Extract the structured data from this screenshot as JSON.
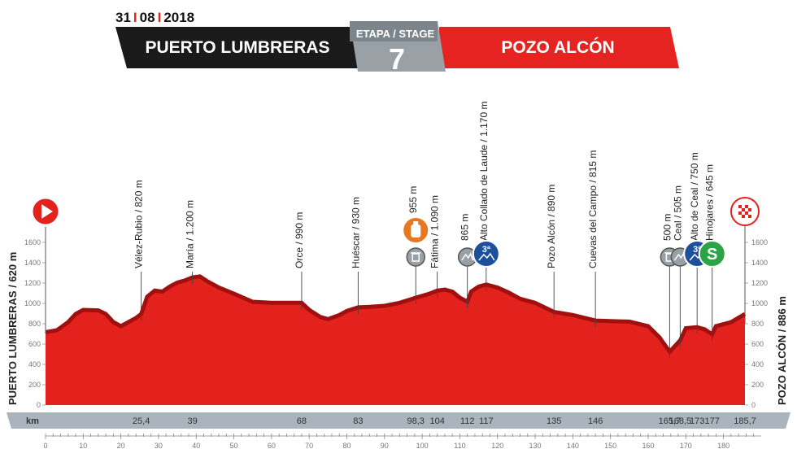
{
  "header": {
    "date_day": "31",
    "date_month": "08",
    "date_year": "2018",
    "start_city": "PUERTO LUMBRERAS",
    "finish_city": "POZO ALCÓN",
    "stage_label": "ETAPA / STAGE",
    "stage_number": "7"
  },
  "colors": {
    "profile_red": "#e3211d",
    "profile_dark_red": "#a1100f",
    "header_black": "#1a1a1a",
    "header_red": "#e52421",
    "stage_gray": "#9aa1a6",
    "climb_blue": "#1c4f9c",
    "sprint_green": "#2aa445",
    "feed_orange": "#e87722",
    "km_bar": "#aab4bd"
  },
  "chart_data": {
    "type": "area",
    "title": "",
    "xlabel": "",
    "ylabel": "",
    "left_axis_label": "PUERTO LUMBRERAS / 620 m",
    "right_axis_label": "POZO ALCÓN / 886 m",
    "km_label": "km",
    "xlim": [
      0,
      190
    ],
    "ylim": [
      0,
      1800
    ],
    "y_ticks": [
      0,
      200,
      400,
      600,
      800,
      1000,
      1200,
      1400,
      1600
    ],
    "x_ticks": [
      0,
      10,
      20,
      30,
      40,
      50,
      60,
      70,
      80,
      90,
      100,
      110,
      120,
      130,
      140,
      150,
      160,
      170,
      180
    ],
    "grid": false,
    "profile": [
      [
        0,
        700
      ],
      [
        3,
        720
      ],
      [
        6,
        800
      ],
      [
        8,
        880
      ],
      [
        10,
        920
      ],
      [
        14,
        915
      ],
      [
        16,
        880
      ],
      [
        18,
        800
      ],
      [
        20,
        760
      ],
      [
        22,
        800
      ],
      [
        24,
        840
      ],
      [
        25.4,
        880
      ],
      [
        27,
        1050
      ],
      [
        29,
        1110
      ],
      [
        31,
        1100
      ],
      [
        33,
        1150
      ],
      [
        35,
        1190
      ],
      [
        37,
        1210
      ],
      [
        39,
        1240
      ],
      [
        41,
        1250
      ],
      [
        43,
        1200
      ],
      [
        46,
        1140
      ],
      [
        50,
        1080
      ],
      [
        55,
        1000
      ],
      [
        60,
        990
      ],
      [
        64,
        990
      ],
      [
        68,
        990
      ],
      [
        70,
        920
      ],
      [
        73,
        850
      ],
      [
        75,
        830
      ],
      [
        78,
        870
      ],
      [
        80,
        910
      ],
      [
        83,
        945
      ],
      [
        86,
        950
      ],
      [
        90,
        960
      ],
      [
        94,
        990
      ],
      [
        98.3,
        1040
      ],
      [
        102,
        1080
      ],
      [
        104,
        1110
      ],
      [
        106,
        1120
      ],
      [
        108,
        1100
      ],
      [
        110,
        1040
      ],
      [
        112,
        1000
      ],
      [
        113,
        1100
      ],
      [
        115,
        1150
      ],
      [
        117,
        1170
      ],
      [
        120,
        1140
      ],
      [
        123,
        1090
      ],
      [
        126,
        1030
      ],
      [
        130,
        990
      ],
      [
        135,
        900
      ],
      [
        140,
        870
      ],
      [
        146,
        815
      ],
      [
        150,
        810
      ],
      [
        155,
        805
      ],
      [
        160,
        760
      ],
      [
        163,
        650
      ],
      [
        165.7,
        510
      ],
      [
        167,
        560
      ],
      [
        168.5,
        620
      ],
      [
        170,
        740
      ],
      [
        173,
        750
      ],
      [
        175,
        730
      ],
      [
        177,
        680
      ],
      [
        178,
        760
      ],
      [
        182,
        800
      ],
      [
        185.7,
        880
      ]
    ],
    "places": [
      {
        "km": 25.4,
        "label": "Vélez-Rubio / 820 m",
        "km_label": "25,4"
      },
      {
        "km": 39,
        "label": "María / 1.200 m",
        "km_label": "39"
      },
      {
        "km": 68,
        "label": "Orce / 990 m",
        "km_label": "68"
      },
      {
        "km": 83,
        "label": "Huéscar / 930 m",
        "km_label": "83"
      },
      {
        "km": 98.3,
        "label": "955 m",
        "km_label": "98,3",
        "icon": "feed-zone-icon",
        "icon2": "trash-zone-icon"
      },
      {
        "km": 104,
        "label": "Fátima / 1.090 m",
        "km_label": "104"
      },
      {
        "km": 112,
        "label": "865 m",
        "km_label": "112",
        "icon": "intermediate-climb-icon"
      },
      {
        "km": 117,
        "label": "Alto Collado de Laude / 1.170 m",
        "km_label": "117",
        "icon": "category-3-climb-icon",
        "badge": "3ª"
      },
      {
        "km": 135,
        "label": "Pozo Alcón / 890 m",
        "km_label": "135"
      },
      {
        "km": 146,
        "label": "Cuevas del Campo / 815 m",
        "km_label": "146"
      },
      {
        "km": 165.7,
        "label": "500 m",
        "km_label": "165,7",
        "icon": "trash-zone-icon"
      },
      {
        "km": 168.5,
        "label": "Ceal / 505 m",
        "km_label": "168,5",
        "icon": "intermediate-climb-icon"
      },
      {
        "km": 173,
        "label": "Alto de Ceal / 750 m",
        "km_label": "173",
        "icon": "category-3-climb-icon",
        "badge": "3ª"
      },
      {
        "km": 177,
        "label": "Hinojares / 645 m",
        "km_label": "177",
        "icon": "sprint-icon",
        "badge": "S"
      },
      {
        "km": 185.7,
        "label": "",
        "km_label": "185,7"
      }
    ]
  }
}
